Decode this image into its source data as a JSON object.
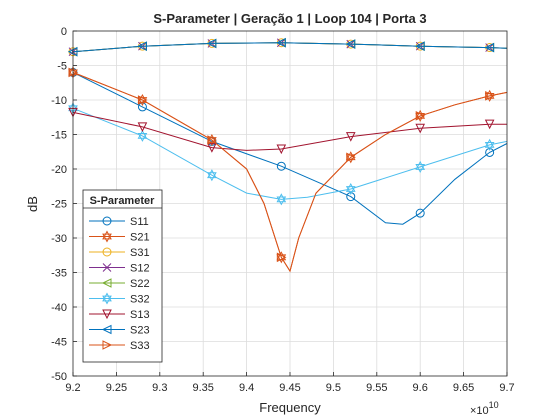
{
  "chart_data": {
    "type": "line",
    "title": "S-Parameter  |  Geração 1  |  Loop 104  |  Porta 3",
    "xlabel": "Frequency",
    "ylabel": "dB",
    "x_exponent_label": "×10",
    "x_exponent_power": "10",
    "xlim": [
      9.2,
      9.7
    ],
    "ylim": [
      -50,
      0
    ],
    "grid": true,
    "legend_title": "S-Parameter",
    "legend_position": "bottom-left",
    "x_ticks": [
      "9.2",
      "9.25",
      "9.3",
      "9.35",
      "9.4",
      "9.45",
      "9.5",
      "9.55",
      "9.6",
      "9.65",
      "9.7"
    ],
    "y_ticks": [
      "0",
      "-5",
      "-10",
      "-15",
      "-20",
      "-25",
      "-30",
      "-35",
      "-40",
      "-45",
      "-50"
    ],
    "marker_x": [
      9.2,
      9.28,
      9.36,
      9.44,
      9.52,
      9.6,
      9.68
    ],
    "series": [
      {
        "name": "S11",
        "color": "#0072BD",
        "marker": "circle",
        "x": [
          9.2,
          9.28,
          9.36,
          9.44,
          9.52,
          9.56,
          9.58,
          9.6,
          9.64,
          9.68,
          9.7
        ],
        "values": [
          -6.0,
          -11.0,
          -16.0,
          -19.6,
          -24.0,
          -27.8,
          -28.0,
          -26.4,
          -21.5,
          -17.6,
          -16.3
        ]
      },
      {
        "name": "S21",
        "color": "#D95319",
        "marker": "hexagram",
        "x": [
          9.2,
          9.28,
          9.36,
          9.4,
          9.42,
          9.44,
          9.45,
          9.46,
          9.48,
          9.52,
          9.56,
          9.6,
          9.64,
          9.68,
          9.7
        ],
        "values": [
          -6.0,
          -10.0,
          -15.8,
          -20.0,
          -25.0,
          -32.8,
          -34.8,
          -30.0,
          -23.5,
          -18.3,
          -15.0,
          -12.3,
          -10.7,
          -9.4,
          -8.9
        ]
      },
      {
        "name": "S31",
        "color": "#EDB120",
        "marker": "circle",
        "x": [
          9.2,
          9.28,
          9.36,
          9.44,
          9.52,
          9.6,
          9.68,
          9.7
        ],
        "values": [
          -3.0,
          -2.2,
          -1.8,
          -1.7,
          -1.9,
          -2.2,
          -2.4,
          -2.5
        ]
      },
      {
        "name": "S12",
        "color": "#7E2F8E",
        "marker": "x",
        "x": [
          9.2,
          9.28,
          9.36,
          9.44,
          9.52,
          9.6,
          9.68,
          9.7
        ],
        "values": [
          -3.0,
          -2.2,
          -1.8,
          -1.7,
          -1.9,
          -2.2,
          -2.4,
          -2.5
        ]
      },
      {
        "name": "S22",
        "color": "#77AC30",
        "marker": "triangle-left",
        "x": [
          9.2,
          9.28,
          9.36,
          9.44,
          9.52,
          9.6,
          9.68,
          9.7
        ],
        "values": [
          -3.0,
          -2.2,
          -1.8,
          -1.7,
          -1.9,
          -2.2,
          -2.4,
          -2.5
        ]
      },
      {
        "name": "S32",
        "color": "#4DBEEE",
        "marker": "hexagram",
        "x": [
          9.2,
          9.28,
          9.36,
          9.4,
          9.44,
          9.47,
          9.52,
          9.6,
          9.68,
          9.7
        ],
        "values": [
          -11.2,
          -15.2,
          -20.9,
          -23.5,
          -24.4,
          -24.1,
          -22.9,
          -19.7,
          -16.5,
          -16.0
        ]
      },
      {
        "name": "S13",
        "color": "#A2142F",
        "marker": "triangle-down",
        "x": [
          9.2,
          9.28,
          9.36,
          9.4,
          9.44,
          9.52,
          9.6,
          9.68,
          9.7
        ],
        "values": [
          -11.8,
          -13.9,
          -16.9,
          -17.3,
          -17.1,
          -15.3,
          -14.1,
          -13.5,
          -13.5
        ]
      },
      {
        "name": "S23",
        "color": "#0072BD",
        "marker": "triangle-left",
        "x": [
          9.2,
          9.28,
          9.36,
          9.44,
          9.52,
          9.6,
          9.68,
          9.7
        ],
        "values": [
          -3.0,
          -2.2,
          -1.8,
          -1.7,
          -1.9,
          -2.2,
          -2.4,
          -2.5
        ]
      },
      {
        "name": "S33",
        "color": "#D95319",
        "marker": "triangle-right",
        "x": [
          9.2,
          9.28,
          9.36,
          9.4,
          9.42,
          9.44,
          9.45,
          9.46,
          9.48,
          9.52,
          9.56,
          9.6,
          9.64,
          9.68,
          9.7
        ],
        "values": [
          -6.0,
          -10.0,
          -15.8,
          -20.0,
          -25.0,
          -32.8,
          -34.8,
          -30.0,
          -23.5,
          -18.3,
          -15.0,
          -12.3,
          -10.7,
          -9.4,
          -8.9
        ]
      }
    ]
  }
}
